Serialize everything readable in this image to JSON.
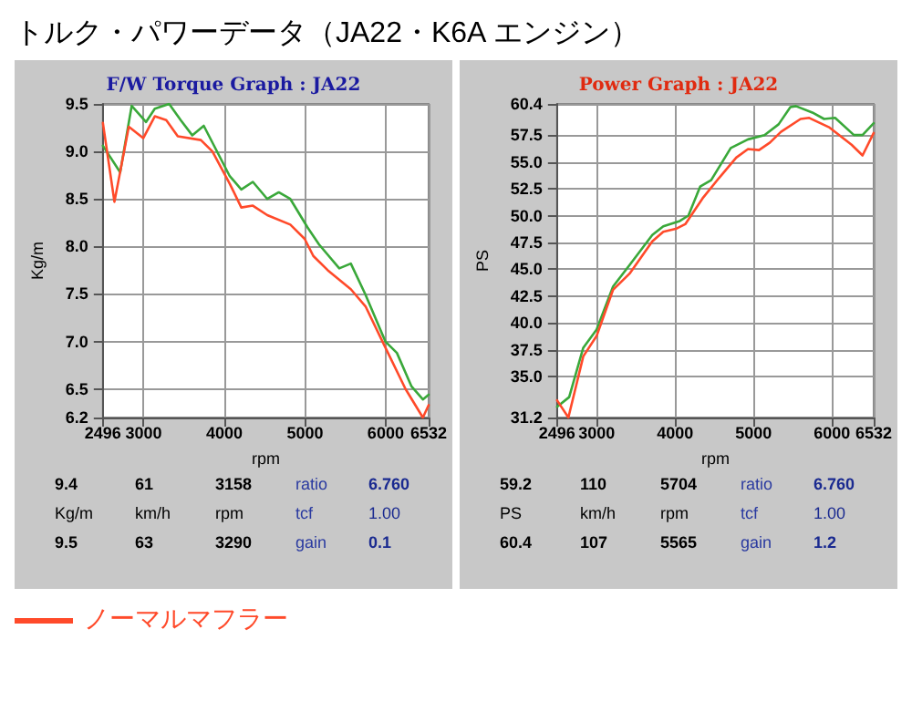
{
  "chart_data": [
    {
      "type": "line",
      "title": "トルク・パワーデータ（JA22・K6A エンジン）",
      "subtitle": "F/W Torque Graph : JA22",
      "xlabel": "rpm",
      "ylabel": "Kg/m",
      "xlim": [
        2496,
        6532
      ],
      "xticks": [
        2496,
        3000,
        4000,
        5000,
        6000,
        6532
      ],
      "ylim": [
        6.2,
        9.5
      ],
      "yticks": [
        6.2,
        6.5,
        {
          "value": 7,
          "label": "7.0"
        },
        7.5,
        {
          "value": 8,
          "label": "8.0"
        },
        8.5,
        {
          "value": 9,
          "label": "9.0"
        },
        9.5
      ],
      "grid": true,
      "marker": "none",
      "legend": "bottom",
      "annotations": [
        "9.4",
        "61",
        "3158",
        "ratio",
        "6.760",
        "Kg/m",
        "km/h",
        "rpm",
        "tcf",
        "1.00",
        "9.5",
        "63",
        "3290",
        "gain",
        "0.1"
      ],
      "series": [
        {
          "color": "#3aa83a",
          "x": [
            2496,
            2710,
            2853,
            3031,
            3139,
            3317,
            3460,
            3603,
            3746,
            4068,
            4211,
            4354,
            4533,
            4675,
            4818,
            5032,
            5175,
            5425,
            5568,
            5746,
            5996,
            6139,
            6318,
            6461,
            6532
          ],
          "values": [
            9.06,
            8.78,
            9.48,
            9.31,
            9.45,
            9.5,
            9.33,
            9.17,
            9.27,
            8.74,
            8.6,
            8.68,
            8.5,
            8.57,
            8.5,
            8.2,
            8.02,
            7.77,
            7.82,
            7.5,
            7.0,
            6.88,
            6.53,
            6.39,
            6.44
          ]
        },
        {
          "name": "ノーマルマフラー",
          "color": "#ff4a2a",
          "x": [
            2496,
            2639,
            2817,
            2996,
            3139,
            3281,
            3424,
            3710,
            3853,
            4068,
            4211,
            4354,
            4533,
            4818,
            4996,
            5103,
            5282,
            5568,
            5750,
            5960,
            6246,
            6461,
            6532
          ],
          "values": [
            9.3,
            8.47,
            9.26,
            9.14,
            9.37,
            9.33,
            9.16,
            9.12,
            9.0,
            8.66,
            8.41,
            8.43,
            8.33,
            8.23,
            8.08,
            7.9,
            7.75,
            7.55,
            7.37,
            7.0,
            6.5,
            6.2,
            6.33
          ]
        }
      ]
    },
    {
      "type": "line",
      "subtitle": "Power Graph : JA22",
      "xlabel": "rpm",
      "ylabel": "PS",
      "xlim": [
        2496,
        6532
      ],
      "xticks": [
        2496,
        3000,
        4000,
        5000,
        6000,
        6532
      ],
      "ylim": [
        31.2,
        60.4
      ],
      "yticks": [
        31.2,
        {
          "value": 35,
          "label": "35.0"
        },
        37.5,
        {
          "value": 40,
          "label": "40.0"
        },
        42.5,
        {
          "value": 45,
          "label": "45.0"
        },
        47.5,
        {
          "value": 50,
          "label": "50.0"
        },
        52.5,
        {
          "value": 55,
          "label": "55.0"
        },
        57.5,
        60.4
      ],
      "grid": true,
      "marker": "none",
      "annotations": [
        "59.2",
        "110",
        "5704",
        "ratio",
        "6.760",
        "PS",
        "km/h",
        "rpm",
        "tcf",
        "1.00",
        "60.4",
        "107",
        "5565",
        "gain",
        "1.2"
      ],
      "series": [
        {
          "color": "#3aa83a",
          "x": [
            2496,
            2650,
            2830,
            3000,
            3210,
            3420,
            3710,
            3850,
            4060,
            4170,
            4320,
            4460,
            4710,
            4930,
            5140,
            5320,
            5470,
            5540,
            5750,
            5900,
            6040,
            6280,
            6390,
            6532
          ],
          "values": [
            32.2,
            33.1,
            37.7,
            39.4,
            43.4,
            45.4,
            48.2,
            49.0,
            49.5,
            50.0,
            52.7,
            53.3,
            56.3,
            57.1,
            57.5,
            58.5,
            60.1,
            60.2,
            59.6,
            59.0,
            59.1,
            57.5,
            57.5,
            58.6
          ]
        },
        {
          "color": "#ff4a2a",
          "x": [
            2496,
            2640,
            2830,
            3000,
            3210,
            3420,
            3710,
            3850,
            4020,
            4130,
            4350,
            4560,
            4780,
            4930,
            5070,
            5210,
            5350,
            5600,
            5710,
            5970,
            6250,
            6390,
            6532
          ],
          "values": [
            32.8,
            31.2,
            36.9,
            38.8,
            43.1,
            44.6,
            47.6,
            48.5,
            48.8,
            49.2,
            51.6,
            53.5,
            55.4,
            56.2,
            56.1,
            56.8,
            57.8,
            59.0,
            59.1,
            58.2,
            56.6,
            55.6,
            57.7
          ]
        }
      ]
    }
  ]
}
